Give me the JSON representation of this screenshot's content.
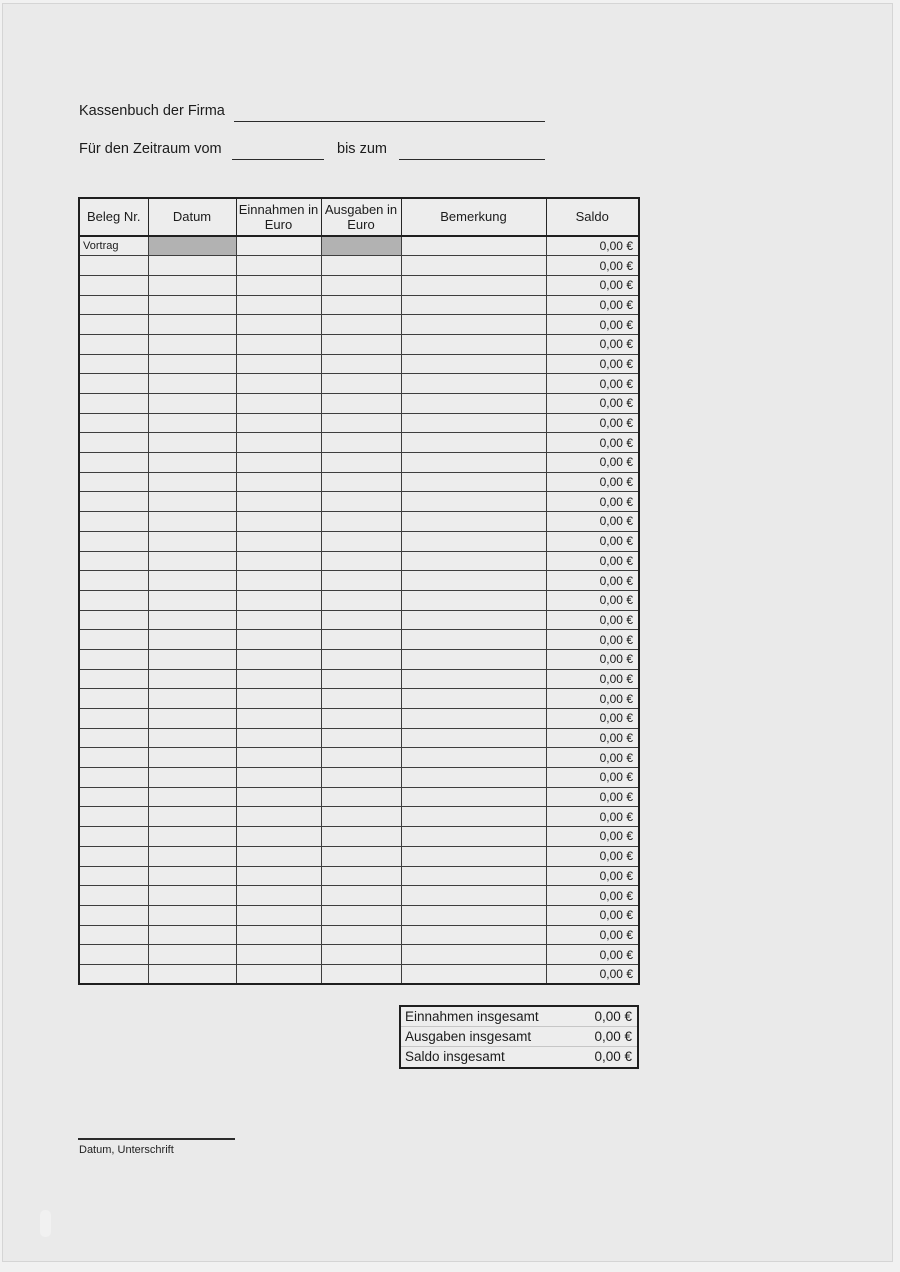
{
  "header": {
    "title_label": "Kassenbuch der Firma",
    "period_prefix": "Für den Zeitraum vom",
    "period_middle": "bis zum"
  },
  "table": {
    "headers": [
      "Beleg Nr.",
      "Datum",
      "Einnahmen in Euro",
      "Ausgaben in Euro",
      "Bemerkung",
      "Saldo"
    ],
    "row0_shaded_columns": [
      1,
      3
    ],
    "rows": [
      [
        "Vortrag",
        "",
        "",
        "",
        "",
        "0,00 €"
      ],
      [
        "",
        "",
        "",
        "",
        "",
        "0,00 €"
      ],
      [
        "",
        "",
        "",
        "",
        "",
        "0,00 €"
      ],
      [
        "",
        "",
        "",
        "",
        "",
        "0,00 €"
      ],
      [
        "",
        "",
        "",
        "",
        "",
        "0,00 €"
      ],
      [
        "",
        "",
        "",
        "",
        "",
        "0,00 €"
      ],
      [
        "",
        "",
        "",
        "",
        "",
        "0,00 €"
      ],
      [
        "",
        "",
        "",
        "",
        "",
        "0,00 €"
      ],
      [
        "",
        "",
        "",
        "",
        "",
        "0,00 €"
      ],
      [
        "",
        "",
        "",
        "",
        "",
        "0,00 €"
      ],
      [
        "",
        "",
        "",
        "",
        "",
        "0,00 €"
      ],
      [
        "",
        "",
        "",
        "",
        "",
        "0,00 €"
      ],
      [
        "",
        "",
        "",
        "",
        "",
        "0,00 €"
      ],
      [
        "",
        "",
        "",
        "",
        "",
        "0,00 €"
      ],
      [
        "",
        "",
        "",
        "",
        "",
        "0,00 €"
      ],
      [
        "",
        "",
        "",
        "",
        "",
        "0,00 €"
      ],
      [
        "",
        "",
        "",
        "",
        "",
        "0,00 €"
      ],
      [
        "",
        "",
        "",
        "",
        "",
        "0,00 €"
      ],
      [
        "",
        "",
        "",
        "",
        "",
        "0,00 €"
      ],
      [
        "",
        "",
        "",
        "",
        "",
        "0,00 €"
      ],
      [
        "",
        "",
        "",
        "",
        "",
        "0,00 €"
      ],
      [
        "",
        "",
        "",
        "",
        "",
        "0,00 €"
      ],
      [
        "",
        "",
        "",
        "",
        "",
        "0,00 €"
      ],
      [
        "",
        "",
        "",
        "",
        "",
        "0,00 €"
      ],
      [
        "",
        "",
        "",
        "",
        "",
        "0,00 €"
      ],
      [
        "",
        "",
        "",
        "",
        "",
        "0,00 €"
      ],
      [
        "",
        "",
        "",
        "",
        "",
        "0,00 €"
      ],
      [
        "",
        "",
        "",
        "",
        "",
        "0,00 €"
      ],
      [
        "",
        "",
        "",
        "",
        "",
        "0,00 €"
      ],
      [
        "",
        "",
        "",
        "",
        "",
        "0,00 €"
      ],
      [
        "",
        "",
        "",
        "",
        "",
        "0,00 €"
      ],
      [
        "",
        "",
        "",
        "",
        "",
        "0,00 €"
      ],
      [
        "",
        "",
        "",
        "",
        "",
        "0,00 €"
      ],
      [
        "",
        "",
        "",
        "",
        "",
        "0,00 €"
      ],
      [
        "",
        "",
        "",
        "",
        "",
        "0,00 €"
      ],
      [
        "",
        "",
        "",
        "",
        "",
        "0,00 €"
      ],
      [
        "",
        "",
        "",
        "",
        "",
        "0,00 €"
      ],
      [
        "",
        "",
        "",
        "",
        "",
        "0,00 €"
      ]
    ]
  },
  "summary": {
    "rows": [
      {
        "label": "Einnahmen insgesamt",
        "value": "0,00 €"
      },
      {
        "label": "Ausgaben insgesamt",
        "value": "0,00 €"
      },
      {
        "label": "Saldo insgesamt",
        "value": "0,00 €"
      }
    ]
  },
  "footer": {
    "signature_label": "Datum, Unterschrift"
  },
  "colors": {
    "page_bg": "#eaeaea",
    "cell_bg": "#ededed",
    "shaded_cell": "#b2b2b2",
    "border_dark": "#1f1f1f",
    "border_light_row": "#7a7a7a"
  }
}
